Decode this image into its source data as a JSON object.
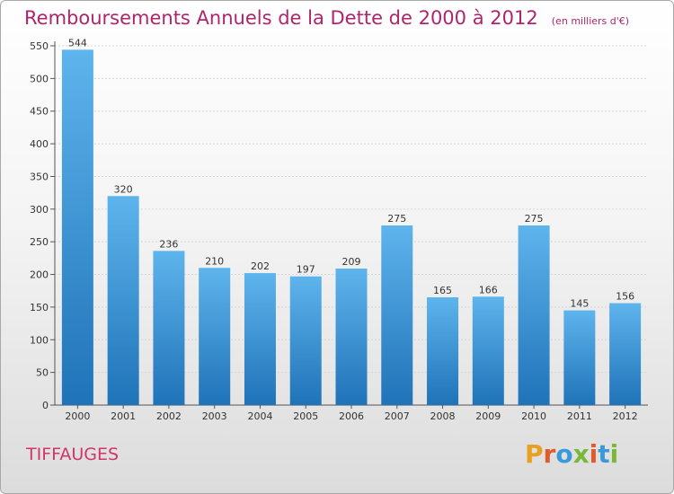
{
  "page": {
    "title": "Remboursements Annuels de la Dette de 2000 à 2012",
    "unit_note": "(en milliers d'€)",
    "town": "TIFFAUGES",
    "logo_text": "Proxiti"
  },
  "colors": {
    "title": "#b0246b",
    "town": "#d2356b",
    "bar_top": "#5eb4ec",
    "bar_bottom": "#1f73b8",
    "logo": [
      "#e8a020",
      "#e05a2a",
      "#3a9ad9",
      "#7ab83a",
      "#e05a2a",
      "#3a9ad9",
      "#7ab83a"
    ]
  },
  "chart_data": {
    "type": "bar",
    "title": "Remboursements Annuels de la Dette de 2000 à 2012",
    "subtitle": "(en milliers d'€)",
    "xlabel": "",
    "ylabel": "",
    "categories": [
      "2000",
      "2001",
      "2002",
      "2003",
      "2004",
      "2005",
      "2006",
      "2007",
      "2008",
      "2009",
      "2010",
      "2011",
      "2012"
    ],
    "values": [
      544,
      320,
      236,
      210,
      202,
      197,
      209,
      275,
      165,
      166,
      275,
      145,
      156
    ],
    "ylim": [
      0,
      550
    ],
    "yticks": [
      0,
      50,
      100,
      150,
      200,
      250,
      300,
      350,
      400,
      450,
      500,
      550
    ],
    "grid": true,
    "legend": "none"
  }
}
